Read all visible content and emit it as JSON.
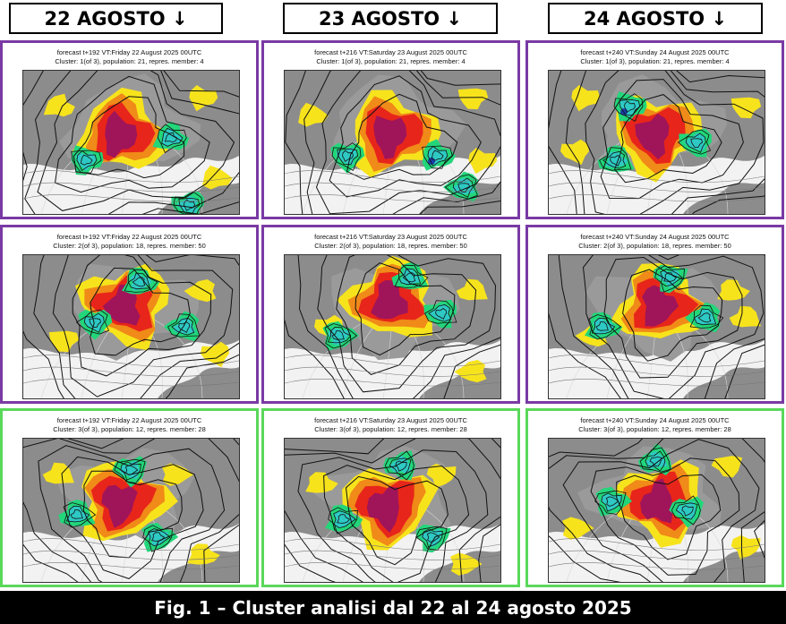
{
  "headers": [
    "22 AGOSTO ↓",
    "23 AGOSTO ↓",
    "24 AGOSTO ↓"
  ],
  "rows": [
    {
      "cluster_color": "#7a3aa4",
      "panels": [
        {
          "line1": "forecast t+192 VT:Friday 22 August 2025 00UTC",
          "line2": "Cluster: 1(of 3), population: 21, repres. member: 4"
        },
        {
          "line1": "forecast t+216 VT:Saturday 23 August 2025 00UTC",
          "line2": "Cluster: 1(of 3), population: 21, repres. member: 4"
        },
        {
          "line1": "forecast t+240 VT:Sunday 24 August 2025 00UTC",
          "line2": "Cluster: 1(of 3), population: 21, repres. member: 4"
        }
      ]
    },
    {
      "cluster_color": "#7a3aa4",
      "panels": [
        {
          "line1": "forecast t+192 VT:Friday 22 August 2025 00UTC",
          "line2": "Cluster: 2(of 3), population: 18, repres. member: 50"
        },
        {
          "line1": "forecast t+216 VT:Saturday 23 August 2025 00UTC",
          "line2": "Cluster: 2(of 3), population: 18, repres. member: 50"
        },
        {
          "line1": "forecast t+240 VT:Sunday 24 August 2025 00UTC",
          "line2": "Cluster: 2(of 3), population: 18, repres. member: 50"
        }
      ]
    },
    {
      "cluster_color": "#5ad85a",
      "panels": [
        {
          "line1": "forecast t+192 VT:Friday 22 August 2025 00UTC",
          "line2": "Cluster: 3(of 3), population: 12, repres. member: 28"
        },
        {
          "line1": "forecast t+216 VT:Saturday 23 August 2025 00UTC",
          "line2": "Cluster: 3(of 3), population: 12, repres. member: 28"
        },
        {
          "line1": "forecast t+240 VT:Sunday 24 August 2025 00UTC",
          "line2": "Cluster: 3(of 3), population: 12, repres. member: 28"
        }
      ]
    }
  ],
  "footer": "Fig. 1 – Cluster analisi dal 22 al 24 agosto 2025",
  "colors": {
    "border_purple": "#7a3aa4",
    "border_green": "#5ad85a",
    "anomaly_positive_strong": "#a0145a",
    "anomaly_positive": "#e8251a",
    "anomaly_positive_weak": "#f08a18",
    "anomaly_positive_light": "#f7e31c",
    "anomaly_negative_light": "#22d67a",
    "anomaly_negative": "#2ec9c4",
    "anomaly_negative_strong": "#1a3fa8",
    "land": "#8c8c8c"
  }
}
